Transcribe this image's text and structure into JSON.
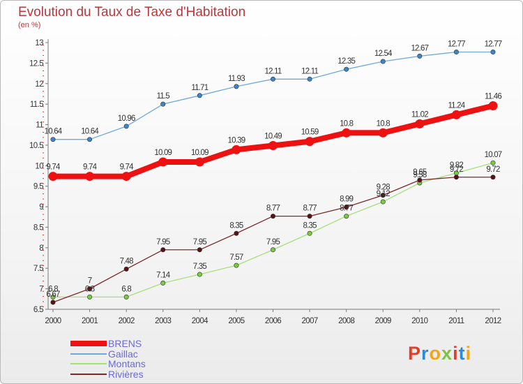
{
  "title": "Evolution du Taux de Taxe d'Habitation",
  "subtitle": "(en %)",
  "logo": {
    "text": "Proxiti",
    "letter_colors": [
      "#e0402a",
      "#2e8bd8",
      "#f2a51a",
      "#7fc241",
      "#e0402a",
      "#2e8bd8",
      "#f2a51a"
    ]
  },
  "chart_data": {
    "type": "line",
    "title": "Evolution du Taux de Taxe d'Habitation",
    "ylabel": "(en %)",
    "xlabel": "",
    "categories": [
      "2000",
      "2001",
      "2002",
      "2003",
      "2004",
      "2005",
      "2006",
      "2007",
      "2008",
      "2009",
      "2010",
      "2011",
      "2012"
    ],
    "ylim": [
      6.5,
      13
    ],
    "yticks": [
      6.5,
      7,
      7.5,
      8,
      8.5,
      9,
      9.5,
      10,
      10.5,
      11,
      11.5,
      12,
      12.5,
      13
    ],
    "ytick_labels": [
      "6.5",
      "7",
      "7.5",
      "8",
      "8.5",
      "9",
      "9.5",
      "10",
      "10.5",
      "11",
      "11.5",
      "12",
      "12.5",
      "13"
    ],
    "legend_position": "bottom-left",
    "grid": false,
    "series": [
      {
        "name": "BRENS",
        "color": "#ee1111",
        "marker_color": "#ee1111",
        "emphasis": "thick",
        "values": [
          9.74,
          9.74,
          9.74,
          10.09,
          10.09,
          10.39,
          10.49,
          10.59,
          10.8,
          10.8,
          11.02,
          11.24,
          11.46
        ],
        "labels": [
          "9.74",
          "9.74",
          "9.74",
          "10.09",
          "10.09",
          "10.39",
          "10.49",
          "10.59",
          "10.8",
          "10.8",
          "11.02",
          "11.24",
          "11.46"
        ]
      },
      {
        "name": "Gaillac",
        "color": "#6fa8dc",
        "marker_color": "#3d85c6",
        "emphasis": "thin",
        "values": [
          10.64,
          10.64,
          10.96,
          11.5,
          11.71,
          11.93,
          12.11,
          12.11,
          12.35,
          12.54,
          12.67,
          12.77,
          12.77
        ],
        "labels": [
          "10.64",
          "10.64",
          "10.96",
          "11.5",
          "11.71",
          "11.93",
          "12.11",
          "12.11",
          "12.35",
          "12.54",
          "12.67",
          "12.77",
          "12.77"
        ]
      },
      {
        "name": "Montans",
        "color": "#a6e07a",
        "marker_color": "#77cc3f",
        "emphasis": "thin",
        "values": [
          6.8,
          6.8,
          6.8,
          7.14,
          7.35,
          7.57,
          7.95,
          8.35,
          8.77,
          9.12,
          9.58,
          9.82,
          10.07
        ],
        "labels": [
          "6.8",
          "6.8",
          "6.8",
          "7.14",
          "7.35",
          "7.57",
          "7.95",
          "8.35",
          "8.77",
          "9.12",
          "9.58",
          "9.82",
          "10.07"
        ]
      },
      {
        "name": "Rivières",
        "color": "#7a2a2a",
        "marker_color": "#5a1111",
        "emphasis": "thin",
        "values": [
          6.67,
          7,
          7.48,
          7.95,
          7.95,
          8.35,
          8.77,
          8.77,
          8.99,
          9.28,
          9.65,
          9.72,
          9.72
        ],
        "labels": [
          "6.67",
          "7",
          "7.48",
          "7.95",
          "7.95",
          "8.35",
          "8.77",
          "8.77",
          "8.99",
          "9.28",
          "9.65",
          "9.72",
          "9.72"
        ]
      }
    ]
  }
}
